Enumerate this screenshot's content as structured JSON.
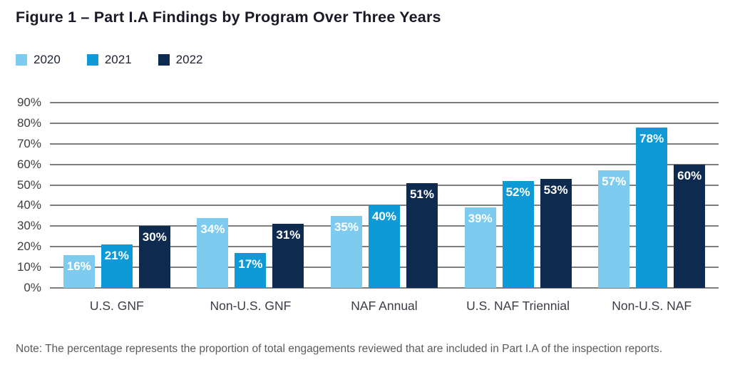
{
  "title": "Figure 1 – Part I.A Findings by Program Over Three Years",
  "note": "Note: The percentage represents the proportion of total engagements reviewed that are included in Part I.A of the inspection reports.",
  "colors": {
    "bar_2020": "#7DCCF0",
    "bar_2021": "#0D9AD7",
    "bar_2022": "#0E2A4E",
    "gridline": "#7F7F7F",
    "title_text": "#191927",
    "axis_text": "#3F3F3F",
    "note_text": "#595A5C",
    "bar_label_text": "#FFFFFF"
  },
  "chart_data": {
    "type": "bar",
    "title": "Figure 1 – Part I.A Findings by Program Over Three Years",
    "categories": [
      "U.S. GNF",
      "Non-U.S. GNF",
      "NAF Annual",
      "U.S. NAF Triennial",
      "Non-U.S. NAF"
    ],
    "series": [
      {
        "name": "2020",
        "color": "#7DCCF0",
        "values": [
          16,
          34,
          35,
          39,
          57
        ]
      },
      {
        "name": "2021",
        "color": "#0D9AD7",
        "values": [
          21,
          17,
          40,
          52,
          78
        ]
      },
      {
        "name": "2022",
        "color": "#0E2A4E",
        "values": [
          30,
          31,
          51,
          53,
          60
        ]
      }
    ],
    "value_suffix": "%",
    "data_labels": "inside-top",
    "xlabel": "",
    "ylabel": "",
    "ylim": [
      0,
      90
    ],
    "y_tick_values": [
      90,
      80,
      70,
      60,
      50,
      40,
      30,
      20,
      10,
      0
    ],
    "y_tick_labels": [
      "90%",
      "80%",
      "70%",
      "60%",
      "50%",
      "40%",
      "30%",
      "20%",
      "10%",
      "0%"
    ],
    "grid": true,
    "legend_position": "top-left"
  }
}
